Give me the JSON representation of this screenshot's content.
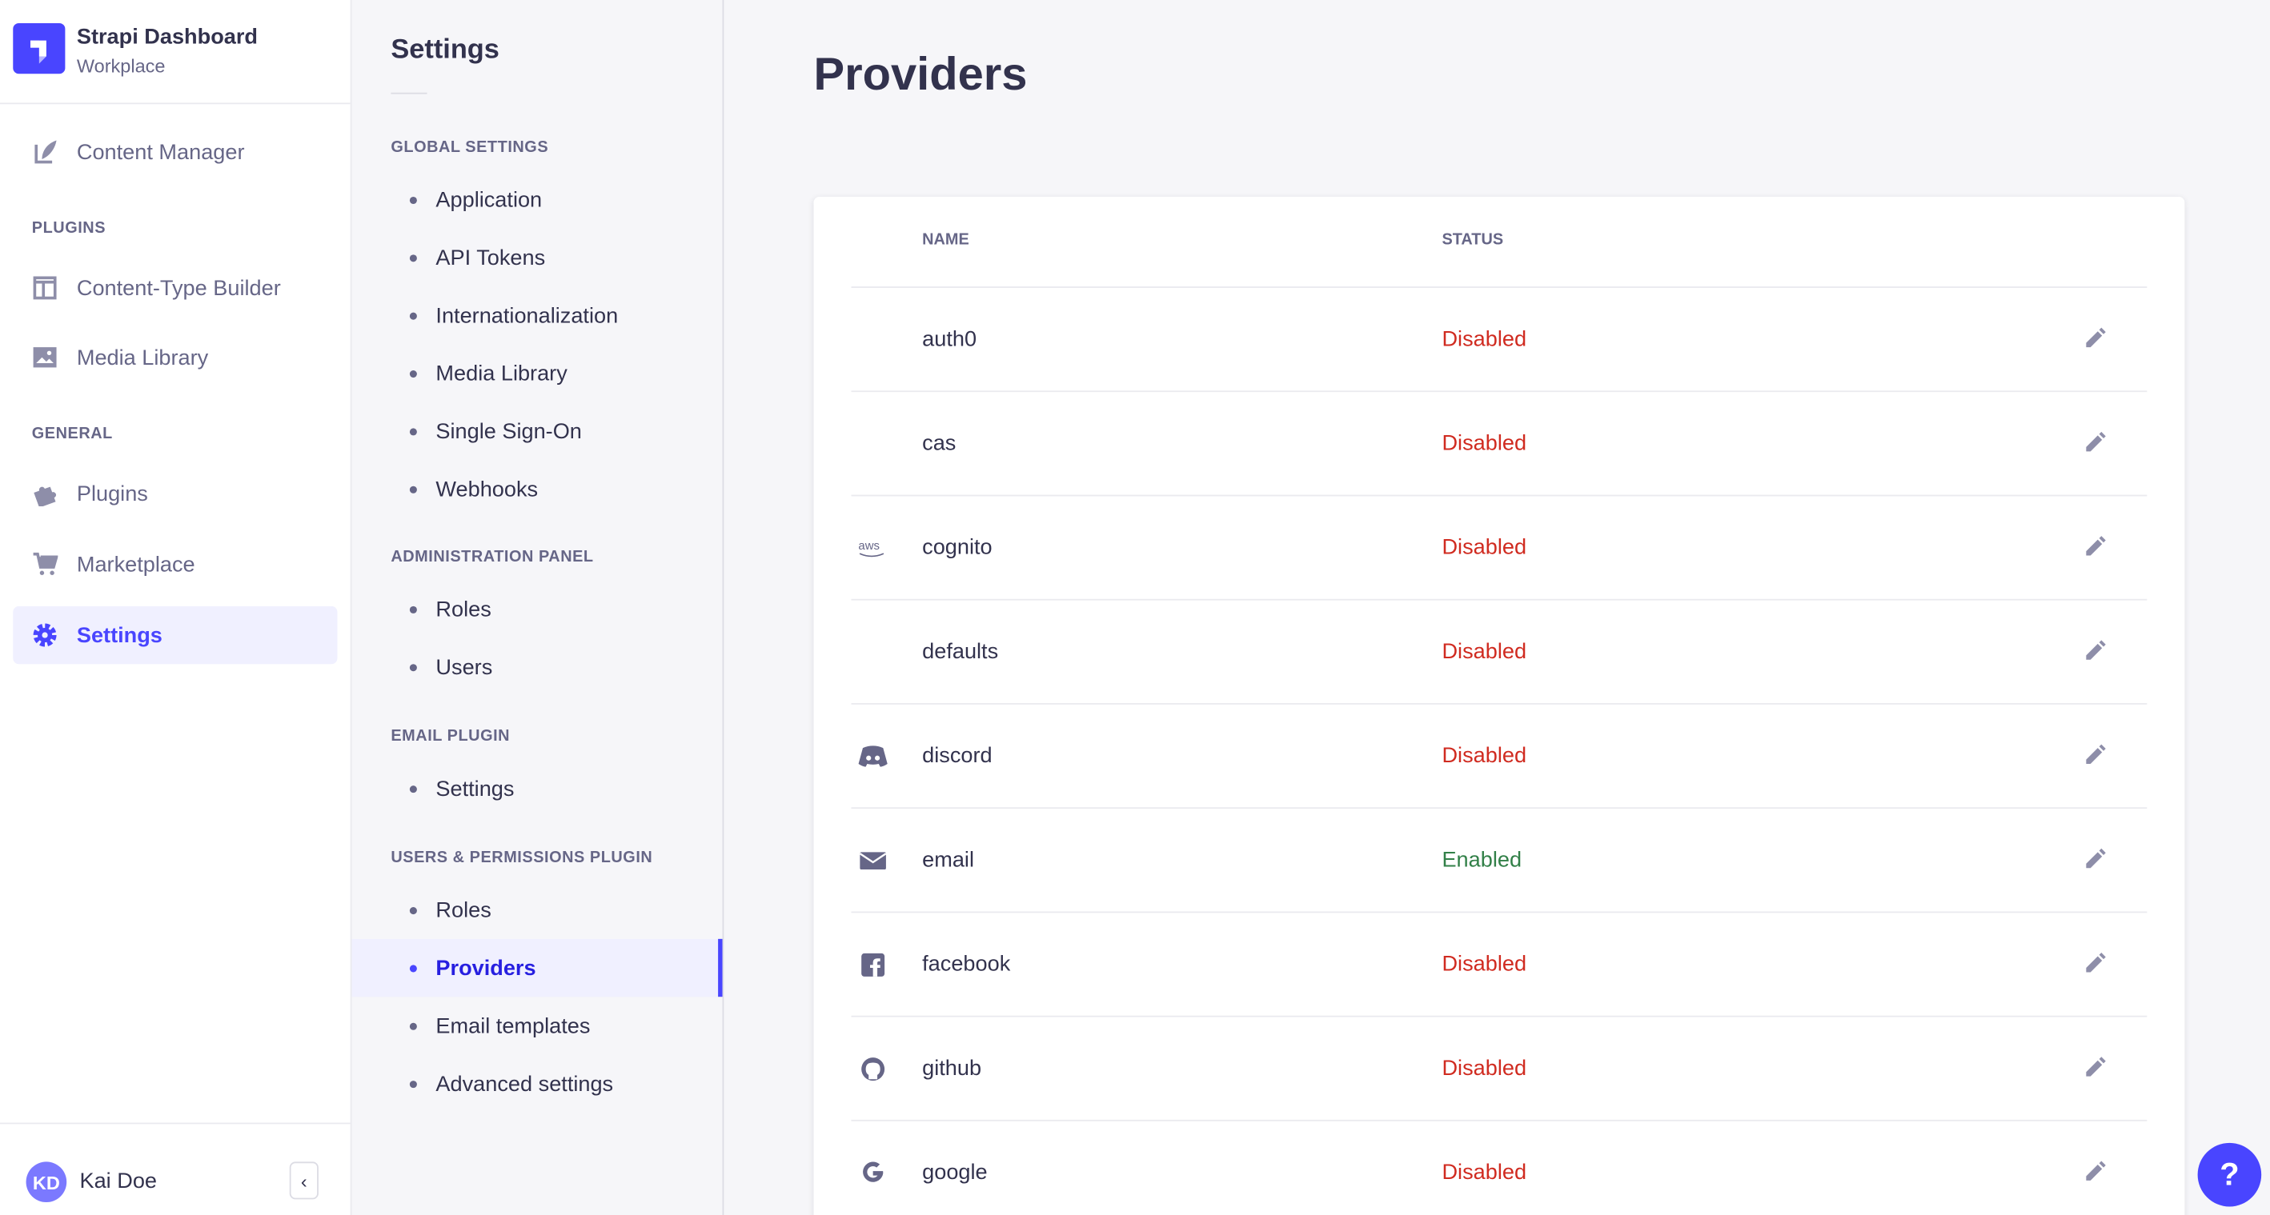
{
  "app": {
    "title": "Strapi Dashboard",
    "subtitle": "Workplace",
    "brand_color": "#4945ff"
  },
  "nav": {
    "content_manager": "Content Manager",
    "plugins_section": "PLUGINS",
    "content_type_builder": "Content-Type Builder",
    "media_library": "Media Library",
    "general_section": "GENERAL",
    "plugins": "Plugins",
    "marketplace": "Marketplace",
    "settings": "Settings",
    "user": {
      "initials": "KD",
      "name": "Kai Doe"
    }
  },
  "settings_nav": {
    "title": "Settings",
    "sections": [
      {
        "title": "GLOBAL SETTINGS",
        "items": [
          "Application",
          "API Tokens",
          "Internationalization",
          "Media Library",
          "Single Sign-On",
          "Webhooks"
        ]
      },
      {
        "title": "ADMINISTRATION PANEL",
        "items": [
          "Roles",
          "Users"
        ]
      },
      {
        "title": "EMAIL PLUGIN",
        "items": [
          "Settings"
        ]
      },
      {
        "title": "USERS & PERMISSIONS PLUGIN",
        "items": [
          "Roles",
          "Providers",
          "Email templates",
          "Advanced settings"
        ]
      }
    ],
    "active": "Providers"
  },
  "main": {
    "title": "Providers",
    "columns": {
      "name": "NAME",
      "status": "STATUS"
    },
    "rows": [
      {
        "name": "auth0",
        "status": "Disabled",
        "icon": ""
      },
      {
        "name": "cas",
        "status": "Disabled",
        "icon": ""
      },
      {
        "name": "cognito",
        "status": "Disabled",
        "icon": "aws-icon"
      },
      {
        "name": "defaults",
        "status": "Disabled",
        "icon": ""
      },
      {
        "name": "discord",
        "status": "Disabled",
        "icon": "discord-icon"
      },
      {
        "name": "email",
        "status": "Enabled",
        "icon": "envelope-icon"
      },
      {
        "name": "facebook",
        "status": "Disabled",
        "icon": "facebook-icon"
      },
      {
        "name": "github",
        "status": "Disabled",
        "icon": "github-icon"
      },
      {
        "name": "google",
        "status": "Disabled",
        "icon": "google-icon"
      }
    ],
    "status_colors": {
      "Disabled": "#d02b20",
      "Enabled": "#328048"
    }
  },
  "help": {
    "label": "?"
  }
}
